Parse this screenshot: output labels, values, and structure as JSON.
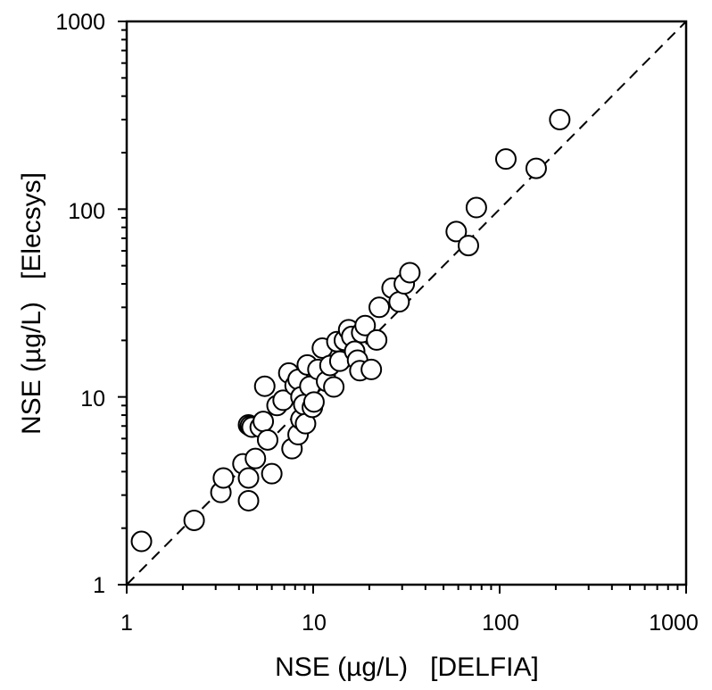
{
  "chart_data": {
    "type": "scatter",
    "title": "",
    "xlabel": "NSE (µg/L)   [DELFIA]",
    "ylabel": "NSE (µg/L)   [Elecsys]",
    "xscale": "log",
    "yscale": "log",
    "xlim": [
      1,
      1000
    ],
    "ylim": [
      1,
      1000
    ],
    "xticks": [
      "1",
      "10",
      "100",
      "1000"
    ],
    "yticks": [
      "1",
      "10",
      "100",
      "1000"
    ],
    "grid": false,
    "legend": "none",
    "reference_line": {
      "style": "dashed",
      "relation": "y = x"
    },
    "marker": {
      "shape": "open-circle",
      "fill": "#ffffff",
      "stroke": "#000000"
    },
    "points": [
      [
        1.2,
        1.7
      ],
      [
        2.3,
        2.2
      ],
      [
        3.2,
        3.1
      ],
      [
        3.3,
        3.7
      ],
      [
        4.2,
        4.4
      ],
      [
        4.5,
        7.1
      ],
      [
        4.6,
        7.0
      ],
      [
        4.7,
        6.9
      ],
      [
        4.5,
        3.7
      ],
      [
        4.5,
        2.8
      ],
      [
        4.9,
        4.7
      ],
      [
        5.2,
        6.9
      ],
      [
        5.4,
        7.4
      ],
      [
        5.5,
        11.4
      ],
      [
        5.7,
        5.9
      ],
      [
        6.0,
        3.9
      ],
      [
        6.4,
        9.0
      ],
      [
        6.9,
        9.6
      ],
      [
        7.4,
        13.4
      ],
      [
        7.7,
        5.3
      ],
      [
        8.0,
        11.5
      ],
      [
        8.3,
        12.4
      ],
      [
        8.6,
        10.0
      ],
      [
        8.3,
        6.3
      ],
      [
        8.6,
        7.6
      ],
      [
        8.9,
        9.1
      ],
      [
        9.1,
        7.2
      ],
      [
        9.3,
        14.8
      ],
      [
        9.6,
        11.4
      ],
      [
        9.9,
        8.8
      ],
      [
        10.1,
        9.4
      ],
      [
        10.6,
        14.0
      ],
      [
        11.2,
        18.2
      ],
      [
        11.8,
        12.1
      ],
      [
        12.3,
        14.7
      ],
      [
        12.9,
        11.3
      ],
      [
        13.4,
        19.7
      ],
      [
        13.9,
        15.5
      ],
      [
        14.7,
        20.0
      ],
      [
        15.5,
        22.8
      ],
      [
        16.1,
        21.0
      ],
      [
        16.7,
        17.5
      ],
      [
        17.3,
        15.7
      ],
      [
        17.8,
        13.8
      ],
      [
        18.2,
        22.0
      ],
      [
        19.0,
        24.0
      ],
      [
        20.5,
        14.0
      ],
      [
        21.9,
        20.1
      ],
      [
        22.6,
        30.0
      ],
      [
        26.5,
        38.0
      ],
      [
        28.9,
        32.1
      ],
      [
        30.8,
        40.0
      ],
      [
        33.0,
        45.9
      ],
      [
        58.5,
        76.0
      ],
      [
        68.0,
        64.0
      ],
      [
        75.0,
        102.0
      ],
      [
        108.0,
        185.0
      ],
      [
        157.0,
        165.0
      ],
      [
        210.0,
        300.0
      ]
    ]
  }
}
